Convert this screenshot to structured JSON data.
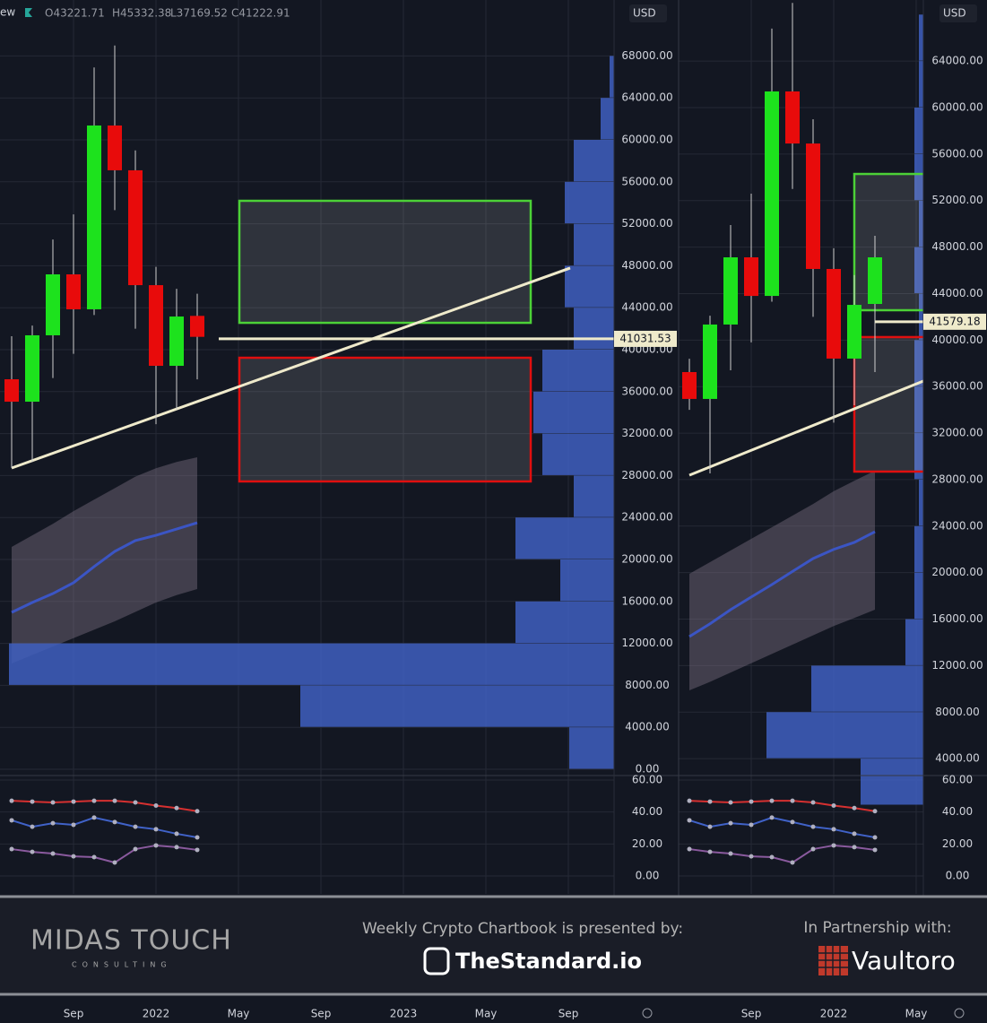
{
  "header": {
    "prefix": "ew",
    "open": "O43221.71",
    "high": "H45332.38",
    "low": "L37169.52",
    "close": "C41222.91"
  },
  "chart_data": [
    {
      "type": "candlestick",
      "currency": "USD",
      "categories": [
        null,
        null,
        null,
        "Sep",
        null,
        null,
        null,
        "2022",
        null,
        null,
        null,
        "May",
        null,
        null,
        null,
        "Sep",
        null,
        null,
        null,
        "2023",
        null,
        null,
        null,
        "May",
        null,
        null,
        null,
        "Sep"
      ],
      "open": [
        37180,
        35040,
        41370,
        47180,
        43850,
        61370,
        57100,
        46150,
        38460,
        43221.71,
        null,
        null,
        null,
        null,
        null,
        null,
        null,
        null,
        null,
        null,
        null,
        null,
        null,
        null,
        null,
        null,
        null,
        null
      ],
      "high": [
        41280,
        42300,
        50500,
        52900,
        66900,
        69000,
        59000,
        47900,
        45800,
        45332.38,
        null,
        null,
        null,
        null,
        null,
        null,
        null,
        null,
        null,
        null,
        null,
        null,
        null,
        null,
        null,
        null,
        null,
        null
      ],
      "low": [
        28720,
        29300,
        37300,
        39600,
        43300,
        53300,
        42000,
        32900,
        34300,
        37169.52,
        null,
        null,
        null,
        null,
        null,
        null,
        null,
        null,
        null,
        null,
        null,
        null,
        null,
        null,
        null,
        null,
        null,
        null
      ],
      "close": [
        35040,
        41370,
        47180,
        43850,
        61370,
        57100,
        46150,
        38460,
        43160,
        41222.91,
        null,
        null,
        null,
        null,
        null,
        null,
        null,
        null,
        null,
        null,
        null,
        null,
        null,
        null,
        null,
        null,
        null,
        null
      ],
      "up_color": "#1de21d",
      "down_color": "#e80b0b",
      "ma": {
        "color": "#3b55c4",
        "values": [
          14960,
          15900,
          16750,
          17780,
          19320,
          20770,
          21800,
          22300,
          22900,
          23500,
          null,
          null,
          null,
          null,
          null,
          null,
          null,
          null,
          null,
          null,
          null,
          null,
          null,
          null,
          null,
          null,
          null,
          null
        ]
      },
      "band": {
        "color": "#7a6f80",
        "upper": [
          21200,
          22300,
          23400,
          24600,
          25700,
          26800,
          27900,
          28700,
          29300,
          29740,
          null,
          null,
          null,
          null,
          null,
          null,
          null,
          null,
          null,
          null,
          null,
          null,
          null,
          null,
          null,
          null,
          null,
          null
        ],
        "lower": [
          10090,
          10900,
          11700,
          12500,
          13300,
          14100,
          15000,
          15900,
          16600,
          17180,
          null,
          null,
          null,
          null,
          null,
          null,
          null,
          null,
          null,
          null,
          null,
          null,
          null,
          null,
          null,
          null,
          null,
          null
        ]
      },
      "volume_profile": {
        "color": "#3f5fc0",
        "bins": [
          0,
          4000,
          8000,
          12000,
          16000,
          20000,
          24000,
          28000,
          32000,
          36000,
          40000,
          44000,
          48000,
          52000,
          56000,
          60000,
          64000,
          68000
        ],
        "values": [
          50,
          350,
          675,
          110,
          60,
          110,
          45,
          80,
          90,
          80,
          45,
          55,
          45,
          55,
          45,
          15,
          5
        ]
      },
      "zones": [
        {
          "color": "#4cd137",
          "low": 42560,
          "high": 54190
        },
        {
          "color": "#e00f0f",
          "low": 27440,
          "high": 39230
        }
      ],
      "trendline": {
        "color": "#efeacb",
        "values": [
          28720,
          47780
        ]
      },
      "price_line": {
        "value": 41031.53,
        "color": "#efeacb"
      },
      "ylim": [
        -598,
        73333
      ],
      "yticks": [
        {
          "value": 0,
          "label": "0.00"
        },
        {
          "value": 4000,
          "label": "4000.00"
        },
        {
          "value": 8000,
          "label": "8000.00"
        },
        {
          "value": 12000,
          "label": "12000.00"
        },
        {
          "value": 16000,
          "label": "16000.00"
        },
        {
          "value": 20000,
          "label": "20000.00"
        },
        {
          "value": 24000,
          "label": "24000.00"
        },
        {
          "value": 28000,
          "label": "28000.00"
        },
        {
          "value": 32000,
          "label": "32000.00"
        },
        {
          "value": 36000,
          "label": "36000.00"
        },
        {
          "value": 40000,
          "label": "40000.00"
        },
        {
          "value": 44000,
          "label": "44000.00"
        },
        {
          "value": 48000,
          "label": "48000.00"
        },
        {
          "value": 52000,
          "label": "52000.00"
        },
        {
          "value": 56000,
          "label": "56000.00"
        },
        {
          "value": 60000,
          "label": "60000.00"
        },
        {
          "value": 64000,
          "label": "64000.00"
        },
        {
          "value": 68000,
          "label": "68000.00"
        }
      ],
      "grid": true,
      "indicator": {
        "ylim": [
          -11.2,
          62.8
        ],
        "yticks": [
          {
            "value": 0,
            "label": "0.00"
          },
          {
            "value": 20,
            "label": "20.00"
          },
          {
            "value": 40,
            "label": "40.00"
          },
          {
            "value": 60,
            "label": "60.00"
          }
        ],
        "series": [
          {
            "color": "#d63030",
            "values": [
              47,
              46.5,
              46,
              46.5,
              47,
              47,
              46,
              44,
              42.5,
              40.5,
              null,
              null,
              null,
              null,
              null,
              null,
              null,
              null,
              null,
              null,
              null,
              null,
              null,
              null,
              null,
              null,
              null,
              null
            ]
          },
          {
            "color": "#4062c8",
            "values": [
              34.8,
              30.8,
              33,
              32,
              36.5,
              33.7,
              30.8,
              29.2,
              26.4,
              24.1,
              null,
              null,
              null,
              null,
              null,
              null,
              null,
              null,
              null,
              null,
              null,
              null,
              null,
              null,
              null,
              null,
              null,
              null
            ]
          },
          {
            "color": "#8a5a9e",
            "values": [
              16.8,
              15.1,
              14,
              12.3,
              11.8,
              8.4,
              16.8,
              19.1,
              18,
              16.3,
              null,
              null,
              null,
              null,
              null,
              null,
              null,
              null,
              null,
              null,
              null,
              null,
              null,
              null,
              null,
              null,
              null,
              null
            ]
          }
        ]
      }
    },
    {
      "type": "candlestick",
      "currency": "USD",
      "categories": [
        null,
        null,
        null,
        "Sep",
        null,
        null,
        null,
        "2022",
        null,
        null,
        null,
        "May"
      ],
      "open": [
        37250,
        34940,
        41340,
        47120,
        43800,
        61390,
        56910,
        46120,
        38410,
        43110,
        null,
        null
      ],
      "high": [
        38400,
        42100,
        49900,
        52600,
        66800,
        69000,
        59000,
        47900,
        45600,
        48970,
        null,
        null
      ],
      "low": [
        34000,
        28530,
        37400,
        39800,
        43300,
        53000,
        42000,
        32900,
        34400,
        37250,
        null,
        null
      ],
      "close": [
        34940,
        41340,
        47120,
        43800,
        61390,
        56910,
        46120,
        38410,
        43030,
        47120,
        null,
        null
      ],
      "up_color": "#1de21d",
      "down_color": "#e80b0b",
      "ma": {
        "color": "#3b55c4",
        "values": [
          14500,
          15600,
          16810,
          17900,
          18970,
          20100,
          21210,
          22000,
          22600,
          23520,
          null,
          null
        ]
      },
      "band": {
        "color": "#7a6f80",
        "upper": [
          19900,
          20900,
          21900,
          22900,
          23900,
          24900,
          25900,
          27000,
          27900,
          28770,
          null,
          null
        ],
        "lower": [
          9870,
          10600,
          11400,
          12200,
          13000,
          13800,
          14600,
          15400,
          16100,
          16810,
          null,
          null
        ]
      },
      "volume_profile": {
        "color": "#3f5fc0",
        "bins": [
          0,
          4000,
          8000,
          12000,
          16000,
          20000,
          24000,
          28000,
          32000,
          36000,
          40000,
          44000,
          48000,
          52000,
          56000,
          60000,
          64000,
          68000
        ],
        "values": [
          70,
          175,
          125,
          20,
          10,
          10,
          5,
          10,
          10,
          10,
          5,
          10,
          5,
          10,
          10,
          5,
          5
        ]
      },
      "zones": [
        {
          "color": "#4cd137",
          "low": 42570,
          "high": 54290
        },
        {
          "color": "#e00f0f",
          "low": 28690,
          "high": 40260
        }
      ],
      "trendline": {
        "color": "#efeacb",
        "values": [
          28380,
          36480
        ]
      },
      "price_line": {
        "value": 41579.18,
        "color": "#efeacb"
      },
      "ylim": [
        2545,
        69254
      ],
      "yticks": [
        {
          "value": 4000,
          "label": "4000.00"
        },
        {
          "value": 8000,
          "label": "8000.00"
        },
        {
          "value": 12000,
          "label": "12000.00"
        },
        {
          "value": 16000,
          "label": "16000.00"
        },
        {
          "value": 20000,
          "label": "20000.00"
        },
        {
          "value": 24000,
          "label": "24000.00"
        },
        {
          "value": 28000,
          "label": "28000.00"
        },
        {
          "value": 32000,
          "label": "32000.00"
        },
        {
          "value": 36000,
          "label": "36000.00"
        },
        {
          "value": 40000,
          "label": "40000.00"
        },
        {
          "value": 44000,
          "label": "44000.00"
        },
        {
          "value": 48000,
          "label": "48000.00"
        },
        {
          "value": 52000,
          "label": "52000.00"
        },
        {
          "value": 56000,
          "label": "56000.00"
        },
        {
          "value": 60000,
          "label": "60000.00"
        },
        {
          "value": 64000,
          "label": "64000.00"
        }
      ],
      "grid": true,
      "indicator": {
        "ylim": [
          -11.2,
          62.8
        ],
        "yticks": [
          {
            "value": 0,
            "label": "0.00"
          },
          {
            "value": 20,
            "label": "20.00"
          },
          {
            "value": 40,
            "label": "40.00"
          },
          {
            "value": 60,
            "label": "60.00"
          }
        ],
        "series": [
          {
            "color": "#d63030",
            "values": [
              47,
              46.5,
              46,
              46.5,
              47,
              47,
              46,
              44,
              42.5,
              40.5,
              null,
              null
            ]
          },
          {
            "color": "#4062c8",
            "values": [
              34.8,
              30.8,
              33,
              32,
              36.5,
              33.7,
              30.8,
              29.2,
              26.4,
              24.1,
              null,
              null
            ]
          },
          {
            "color": "#8a5a9e",
            "values": [
              16.8,
              15.1,
              14,
              12.3,
              11.8,
              8.4,
              16.8,
              19.1,
              18,
              16.3,
              null,
              null
            ]
          }
        ]
      }
    }
  ],
  "footer": {
    "brand": "MIDAS TOUCH",
    "brand_sub": "CONSULTING",
    "presented": "Weekly Crypto Chartbook is presented by:",
    "sponsor": "TheStandard.io",
    "partnership": "In Partnership with:",
    "partner": "Vaultoro"
  }
}
